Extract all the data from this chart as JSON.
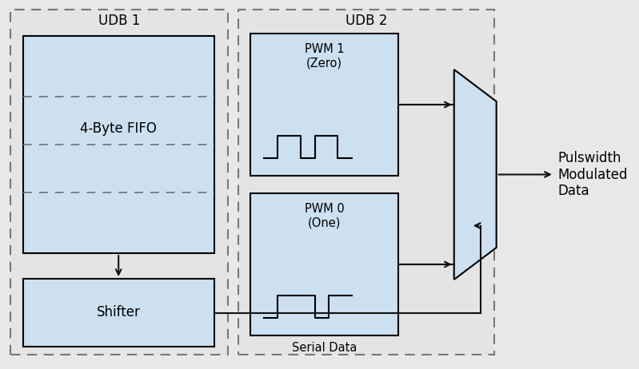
{
  "bg_color": "#e8e8e8",
  "udb1_bg": "#e0e0e0",
  "udb2_bg": "#e0e0e0",
  "fifo_color": "#cce0f0",
  "shifter_color": "#cce0f0",
  "pwm_color": "#cce0f0",
  "mux_color": "#cce0f0",
  "dash_color": "#666666",
  "line_color": "#111111",
  "title_udb1": "UDB 1",
  "title_udb2": "UDB 2",
  "label_fifo": "4-Byte FIFO",
  "label_shifter": "Shifter",
  "label_pwm1": "PWM 1\n(Zero)",
  "label_pwm0": "PWM 0\n(One)",
  "label_serial": "Serial Data",
  "label_output": "Pulswidth\nModulated\nData",
  "font_size": 12,
  "small_font": 10.5
}
